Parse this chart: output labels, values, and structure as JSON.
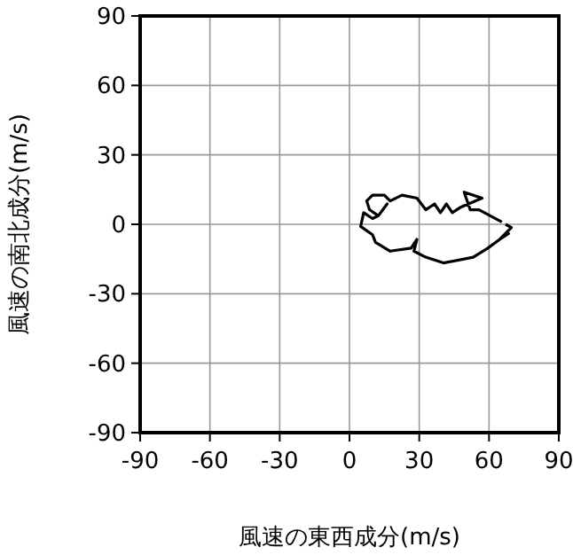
{
  "chart_data": {
    "type": "line",
    "xlabel": "風速の東西成分(m/s)",
    "ylabel": "風速の南北成分(m/s)",
    "xlim": [
      -90,
      90
    ],
    "ylim": [
      -90,
      90
    ],
    "xticks": [
      -90,
      -60,
      -30,
      0,
      30,
      60,
      90
    ],
    "yticks": [
      -90,
      -60,
      -30,
      0,
      30,
      60,
      90
    ],
    "grid": true,
    "series": [
      {
        "color": "#000000",
        "x": [
          67.1,
          69.6,
          64.6,
          68.4,
          64.6,
          59.5,
          53.2,
          40.4,
          32.8,
          27.7,
          29,
          26.5,
          17.5,
          11.2,
          9.9,
          4.8,
          6.1,
          9.9,
          12.4,
          16.2,
          12.4,
          8.6,
          7.4,
          9.9,
          15,
          17.5,
          22.6,
          29,
          32.8,
          36.6,
          39.1,
          41.7,
          44.2,
          48,
          57,
          49.3,
          51.9,
          55.7,
          65.5
        ],
        "values": [
          0,
          -1.4,
          -6.5,
          -4,
          -6.5,
          -10.3,
          -14.2,
          -16.7,
          -14.2,
          -11.6,
          -6.5,
          -10.3,
          -11.6,
          -7.8,
          -4.5,
          -0.9,
          5,
          2.5,
          3.7,
          8.8,
          3.7,
          6.3,
          10.1,
          12.6,
          12.6,
          10.1,
          12.6,
          11.3,
          6.3,
          8.8,
          5,
          8.8,
          5,
          7.5,
          11.3,
          13.9,
          6.3,
          6.3,
          1
        ]
      }
    ]
  }
}
